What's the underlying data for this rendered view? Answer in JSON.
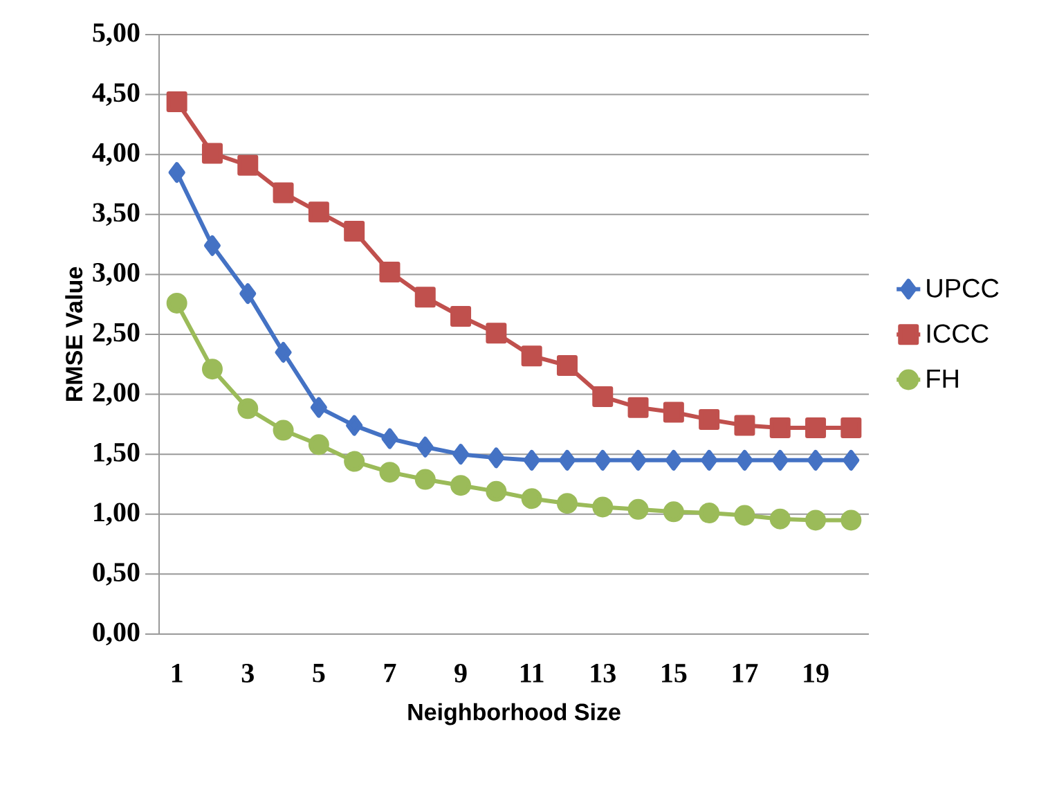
{
  "chart_data": {
    "type": "line",
    "xlabel": "Neighborhood Size",
    "ylabel": "RMSE Value",
    "categories": [
      "1",
      null,
      "3",
      null,
      "5",
      null,
      "7",
      null,
      "9",
      null,
      "11",
      null,
      "13",
      null,
      "15",
      null,
      "17",
      null,
      "19",
      null
    ],
    "series": [
      {
        "name": "UPCC",
        "color": "#4472c4",
        "marker": "diamond",
        "values": [
          3.85,
          3.24,
          2.84,
          2.35,
          1.89,
          1.74,
          1.63,
          1.56,
          1.5,
          1.47,
          1.45,
          1.45,
          1.45,
          1.45,
          1.45,
          1.45,
          1.45,
          1.45,
          1.45,
          1.45
        ]
      },
      {
        "name": "ICCC",
        "color": "#c0504d",
        "marker": "square",
        "values": [
          4.44,
          4.01,
          3.91,
          3.68,
          3.52,
          3.36,
          3.02,
          2.81,
          2.65,
          2.51,
          2.32,
          2.24,
          1.98,
          1.89,
          1.85,
          1.79,
          1.74,
          1.72,
          1.72,
          1.72
        ]
      },
      {
        "name": "FH",
        "color": "#9bbb59",
        "marker": "circle",
        "values": [
          2.76,
          2.21,
          1.88,
          1.7,
          1.58,
          1.44,
          1.35,
          1.29,
          1.24,
          1.19,
          1.13,
          1.09,
          1.06,
          1.04,
          1.02,
          1.01,
          0.99,
          0.96,
          0.95,
          0.95
        ]
      }
    ],
    "ylim": [
      0,
      5
    ],
    "yticks": [
      {
        "value": 0,
        "label": "0,00"
      },
      {
        "value": 0.5,
        "label": "0,50"
      },
      {
        "value": 1,
        "label": "1,00"
      },
      {
        "value": 1.5,
        "label": "1,50"
      },
      {
        "value": 2,
        "label": "2,00"
      },
      {
        "value": 2.5,
        "label": "2,50"
      },
      {
        "value": 3,
        "label": "3,00"
      },
      {
        "value": 3.5,
        "label": "3,50"
      },
      {
        "value": 4,
        "label": "4,00"
      },
      {
        "value": 4.5,
        "label": "4,50"
      },
      {
        "value": 5,
        "label": "5,00"
      }
    ],
    "grid": "y",
    "legend": "right",
    "line_style": "solid"
  }
}
